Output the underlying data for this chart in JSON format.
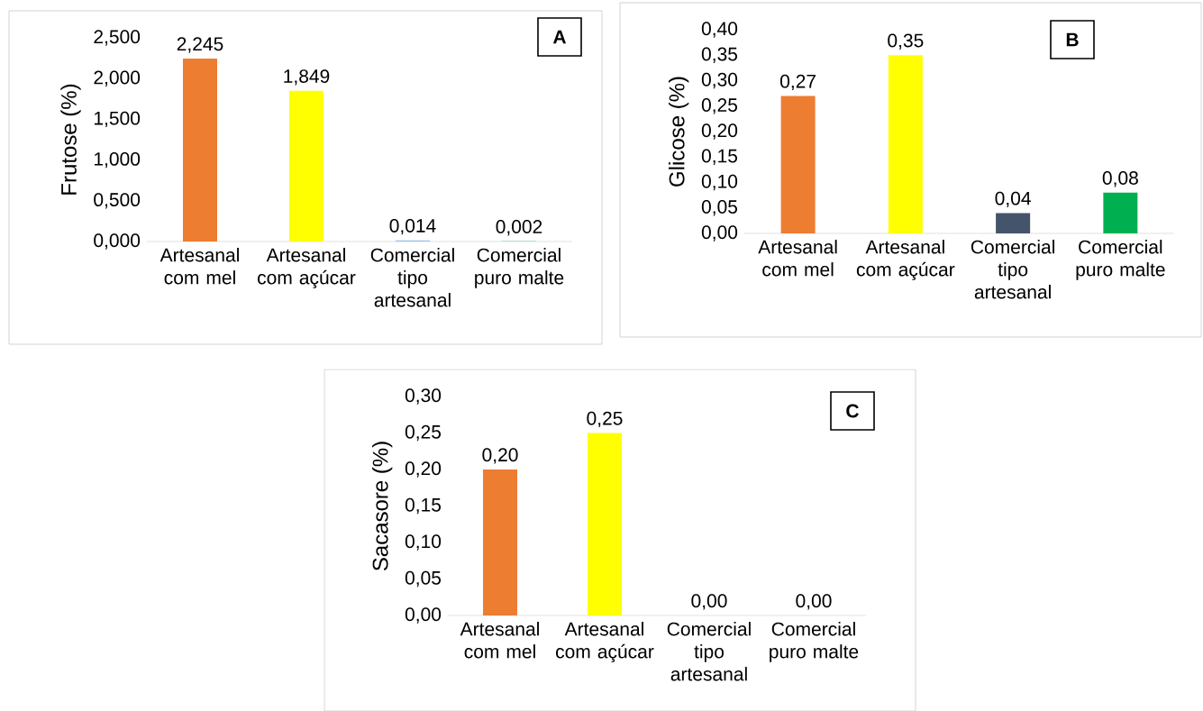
{
  "chart_data": [
    {
      "type": "bar",
      "ylabel": "Frutose (%)",
      "annotations": [
        "A"
      ],
      "categories": [
        "Artesanal com mel",
        "Artesanal com açúcar",
        "Comercial tipo artesanal",
        "Comercial puro malte"
      ],
      "values": [
        2.245,
        1.849,
        0.014,
        0.002
      ],
      "value_labels": [
        "2,245",
        "1,849",
        "0,014",
        "0,002"
      ],
      "colors": [
        "#ed7d31",
        "#ffff00",
        "#9dc3e6",
        "#00b050"
      ],
      "ylim": [
        0,
        2.5
      ],
      "yticks": [
        {
          "value": 0,
          "label": "0,000"
        },
        {
          "value": 0.5,
          "label": "0,500"
        },
        {
          "value": 1,
          "label": "1,000"
        },
        {
          "value": 1.5,
          "label": "1,500"
        },
        {
          "value": 2,
          "label": "2,000"
        },
        {
          "value": 2.5,
          "label": "2,500"
        }
      ]
    },
    {
      "type": "bar",
      "ylabel": "Glicose (%)",
      "annotations": [
        "B"
      ],
      "categories": [
        "Artesanal com mel",
        "Artesanal com açúcar",
        "Comercial tipo artesanal",
        "Comercial puro malte"
      ],
      "values": [
        0.27,
        0.35,
        0.04,
        0.08
      ],
      "value_labels": [
        "0,27",
        "0,35",
        "0,04",
        "0,08"
      ],
      "colors": [
        "#ed7d31",
        "#ffff00",
        "#44546a",
        "#00b050"
      ],
      "ylim": [
        0,
        0.4
      ],
      "yticks": [
        {
          "value": 0,
          "label": "0,00"
        },
        {
          "value": 0.05,
          "label": "0,05"
        },
        {
          "value": 0.1,
          "label": "0,10"
        },
        {
          "value": 0.15,
          "label": "0,15"
        },
        {
          "value": 0.2,
          "label": "0,20"
        },
        {
          "value": 0.25,
          "label": "0,25"
        },
        {
          "value": 0.3,
          "label": "0,30"
        },
        {
          "value": 0.35,
          "label": "0,35"
        },
        {
          "value": 0.4,
          "label": "0,40"
        }
      ]
    },
    {
      "type": "bar",
      "ylabel": "Sacasore (%)",
      "annotations": [
        "C"
      ],
      "categories": [
        "Artesanal com mel",
        "Artesanal com açúcar",
        "Comercial tipo artesanal",
        "Comercial puro malte"
      ],
      "values": [
        0.2,
        0.25,
        0,
        0
      ],
      "value_labels": [
        "0,20",
        "0,25",
        "0,00",
        "0,00"
      ],
      "colors": [
        "#ed7d31",
        "#ffff00",
        "#44546a",
        "#00b050"
      ],
      "ylim": [
        0,
        0.3
      ],
      "yticks": [
        {
          "value": 0,
          "label": "0,00"
        },
        {
          "value": 0.05,
          "label": "0,05"
        },
        {
          "value": 0.1,
          "label": "0,10"
        },
        {
          "value": 0.15,
          "label": "0,15"
        },
        {
          "value": 0.2,
          "label": "0,20"
        },
        {
          "value": 0.25,
          "label": "0,25"
        },
        {
          "value": 0.3,
          "label": "0,30"
        }
      ]
    }
  ]
}
